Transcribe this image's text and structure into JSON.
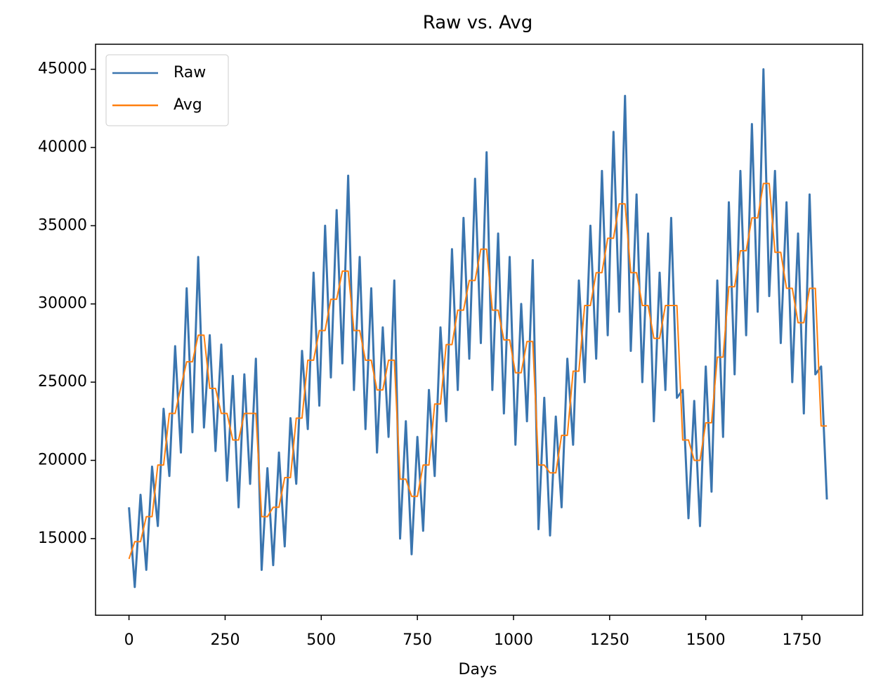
{
  "chart_data": {
    "type": "line",
    "title": "Raw vs. Avg",
    "x_label": "Days",
    "x": [
      0,
      15,
      30,
      45,
      60,
      75,
      90,
      105,
      120,
      135,
      150,
      165,
      180,
      195,
      210,
      225,
      240,
      255,
      270,
      285,
      300,
      315,
      330,
      345,
      360,
      375,
      390,
      405,
      420,
      435,
      450,
      465,
      480,
      495,
      510,
      525,
      540,
      555,
      570,
      585,
      600,
      615,
      630,
      645,
      660,
      675,
      690,
      705,
      720,
      735,
      750,
      765,
      780,
      795,
      810,
      825,
      840,
      855,
      870,
      885,
      900,
      915,
      930,
      945,
      960,
      975,
      990,
      1005,
      1020,
      1035,
      1050,
      1065,
      1080,
      1095,
      1110,
      1125,
      1140,
      1155,
      1170,
      1185,
      1200,
      1215,
      1230,
      1245,
      1260,
      1275,
      1290,
      1305,
      1320,
      1335,
      1350,
      1365,
      1380,
      1395,
      1410,
      1425,
      1440,
      1455,
      1470,
      1485,
      1500,
      1515,
      1530,
      1545,
      1560,
      1575,
      1590,
      1605,
      1620,
      1635,
      1650,
      1665,
      1680,
      1695,
      1710,
      1725,
      1740,
      1755,
      1770,
      1785,
      1800,
      1815
    ],
    "series": [
      {
        "name": "Raw",
        "color": "#3a75af",
        "values": [
          17000,
          11900,
          17800,
          13000,
          19600,
          15800,
          23300,
          19000,
          27300,
          20500,
          31000,
          21800,
          33000,
          22100,
          28000,
          20600,
          27400,
          18700,
          25400,
          17000,
          25500,
          18500,
          26500,
          13000,
          19500,
          13300,
          20500,
          14500,
          22700,
          18500,
          27000,
          22000,
          32000,
          23500,
          35000,
          25300,
          36000,
          26200,
          38200,
          24500,
          33000,
          22000,
          31000,
          20500,
          28500,
          21500,
          31500,
          15000,
          22500,
          14000,
          21500,
          15500,
          24500,
          19000,
          28500,
          22500,
          33500,
          24500,
          35500,
          26500,
          38000,
          27500,
          39700,
          24500,
          34500,
          23000,
          33000,
          21000,
          30000,
          22500,
          32800,
          15600,
          24000,
          15200,
          22800,
          17000,
          26500,
          21000,
          31500,
          25000,
          35000,
          26500,
          38500,
          28000,
          41000,
          29500,
          43300,
          27000,
          37000,
          25000,
          34500,
          22500,
          32000,
          24500,
          35500,
          24000,
          24500,
          16300,
          23800,
          15800,
          26000,
          18000,
          31500,
          21500,
          36500,
          25500,
          38500,
          28000,
          41500,
          29500,
          45000,
          30500,
          38500,
          27500,
          36500,
          25000,
          34500,
          23000,
          37000,
          25500,
          26000,
          17500
        ]
      },
      {
        "name": "Avg",
        "color": "#ff7f0e",
        "values": [
          13700,
          14800,
          14800,
          16400,
          16400,
          19700,
          19700,
          23000,
          23000,
          24700,
          26300,
          26300,
          28000,
          28000,
          24600,
          24600,
          23000,
          23000,
          21300,
          21300,
          23000,
          23000,
          23000,
          16400,
          16400,
          17000,
          17000,
          18900,
          18900,
          22700,
          22700,
          26400,
          26400,
          28300,
          28300,
          30300,
          30300,
          32100,
          32100,
          28300,
          28300,
          26400,
          26400,
          24500,
          24500,
          26400,
          26400,
          18800,
          18800,
          17700,
          17700,
          19700,
          19700,
          23600,
          23600,
          27400,
          27400,
          29600,
          29600,
          31500,
          31500,
          33500,
          33500,
          29600,
          29600,
          27700,
          27700,
          25600,
          25600,
          27600,
          27600,
          19700,
          19700,
          19200,
          19200,
          21600,
          21600,
          25700,
          25700,
          29900,
          29900,
          32000,
          32000,
          34200,
          34200,
          36400,
          36400,
          32000,
          32000,
          29900,
          29900,
          27800,
          27800,
          29900,
          29900,
          29900,
          21300,
          21300,
          20000,
          20000,
          22400,
          22400,
          26600,
          26600,
          31100,
          31100,
          33400,
          33400,
          35500,
          35500,
          37700,
          37700,
          33300,
          33300,
          31000,
          31000,
          28800,
          28800,
          31000,
          31000,
          22200,
          22200
        ]
      }
    ],
    "xlim": [
      -87,
      1908
    ],
    "xticks": [
      0,
      250,
      500,
      750,
      1000,
      1250,
      1500,
      1750
    ],
    "ylim": [
      10100,
      46600
    ],
    "yticks": [
      15000,
      20000,
      25000,
      30000,
      35000,
      40000,
      45000
    ],
    "legend": "upper left"
  }
}
